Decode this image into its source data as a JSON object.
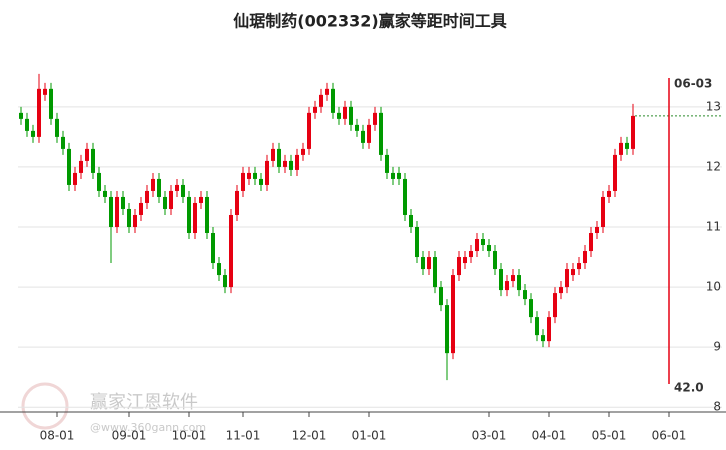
{
  "chart_data": {
    "type": "candlestick",
    "title": "仙琚制药(002332)赢家等距时间工具",
    "categories": [
      null,
      null,
      null,
      null,
      null,
      null,
      "08-01",
      null,
      null,
      null,
      null,
      null,
      null,
      null,
      null,
      null,
      null,
      null,
      "09-01",
      null,
      null,
      null,
      null,
      null,
      null,
      null,
      null,
      null,
      "10-01",
      null,
      null,
      null,
      null,
      null,
      null,
      null,
      null,
      "11-01",
      null,
      null,
      null,
      null,
      null,
      null,
      null,
      null,
      null,
      null,
      "12-01",
      null,
      null,
      null,
      null,
      null,
      null,
      null,
      null,
      null,
      "01-01",
      null,
      null,
      null,
      null,
      null,
      null,
      null,
      null,
      null,
      null,
      null,
      null,
      null,
      null,
      null,
      null,
      null,
      null,
      null,
      "03-01",
      null,
      null,
      null,
      null,
      null,
      null,
      null,
      null,
      null,
      "04-01",
      null,
      null,
      null,
      null,
      null,
      null,
      null,
      null,
      null,
      "05-01",
      null,
      null,
      null,
      null,
      null,
      null,
      null,
      null,
      null,
      "06-01",
      null,
      null,
      null,
      null,
      null,
      null,
      null,
      null
    ],
    "open": [
      12.9,
      12.8,
      12.6,
      12.5,
      13.2,
      13.3,
      12.8,
      12.5,
      12.3,
      11.7,
      11.9,
      12.1,
      12.3,
      11.9,
      11.6,
      11.5,
      11.0,
      11.5,
      11.3,
      11.0,
      11.2,
      11.4,
      11.6,
      11.8,
      11.5,
      11.3,
      11.6,
      11.7,
      11.5,
      10.9,
      11.4,
      11.5,
      10.9,
      10.4,
      10.2,
      10.0,
      11.2,
      11.6,
      11.8,
      11.9,
      11.8,
      11.7,
      12.1,
      12.3,
      12.0,
      12.1,
      11.95,
      12.2,
      12.3,
      12.9,
      13.0,
      13.2,
      13.3,
      12.9,
      12.8,
      13.0,
      12.7,
      12.6,
      12.4,
      12.7,
      12.9,
      12.2,
      11.9,
      11.9,
      11.8,
      11.2,
      11.0,
      10.5,
      10.3,
      10.5,
      10.0,
      9.7,
      8.9,
      10.2,
      10.4,
      10.5,
      10.6,
      10.8,
      10.7,
      10.6,
      10.3,
      9.95,
      10.1,
      10.2,
      9.95,
      9.8,
      9.5,
      9.2,
      9.1,
      9.5,
      9.9,
      10.0,
      10.2,
      10.3,
      10.4,
      10.6,
      10.9,
      11.0,
      11.5,
      11.6,
      12.2,
      12.4,
      12.3,
      null,
      null,
      null,
      null,
      null,
      null,
      null,
      null,
      null,
      null,
      null,
      null,
      null,
      null
    ],
    "high": [
      13.0,
      12.9,
      12.7,
      13.55,
      13.4,
      13.4,
      12.9,
      12.6,
      12.4,
      12.0,
      12.2,
      12.4,
      12.4,
      12.0,
      11.7,
      11.6,
      11.6,
      11.6,
      11.4,
      11.3,
      11.5,
      11.7,
      11.9,
      11.9,
      11.6,
      11.7,
      11.8,
      11.8,
      11.6,
      11.5,
      11.6,
      11.6,
      11.0,
      10.5,
      10.3,
      11.3,
      11.7,
      12.0,
      12.0,
      12.0,
      11.9,
      12.2,
      12.4,
      12.4,
      12.2,
      12.2,
      12.3,
      12.4,
      13.0,
      13.1,
      13.3,
      13.4,
      13.4,
      13.0,
      13.1,
      13.1,
      12.8,
      12.7,
      12.8,
      13.0,
      13.0,
      12.3,
      12.0,
      12.0,
      11.9,
      11.3,
      11.1,
      10.6,
      10.6,
      10.6,
      10.1,
      9.8,
      10.3,
      10.6,
      10.6,
      10.7,
      10.9,
      10.9,
      10.8,
      10.7,
      10.4,
      10.2,
      10.3,
      10.3,
      10.05,
      9.9,
      9.6,
      9.3,
      9.6,
      10.0,
      10.1,
      10.4,
      10.4,
      10.5,
      10.7,
      11.0,
      11.1,
      11.6,
      11.7,
      12.3,
      12.5,
      12.5,
      13.05,
      null,
      null,
      null,
      null,
      null,
      null,
      null,
      null,
      null,
      null,
      null,
      null,
      null,
      null
    ],
    "low": [
      12.7,
      12.5,
      12.4,
      12.4,
      13.1,
      12.7,
      12.4,
      12.2,
      11.6,
      11.6,
      11.8,
      12.0,
      11.8,
      11.5,
      11.4,
      10.4,
      10.9,
      11.2,
      10.9,
      10.9,
      11.1,
      11.3,
      11.5,
      11.4,
      11.2,
      11.2,
      11.5,
      11.4,
      10.8,
      10.8,
      11.3,
      10.8,
      10.3,
      10.1,
      9.9,
      9.9,
      11.1,
      11.5,
      11.7,
      11.7,
      11.6,
      11.6,
      12.0,
      11.9,
      11.9,
      11.85,
      11.85,
      12.1,
      12.2,
      12.8,
      12.9,
      13.1,
      12.8,
      12.7,
      12.7,
      12.6,
      12.5,
      12.3,
      12.3,
      12.6,
      12.1,
      11.8,
      11.7,
      11.7,
      11.1,
      10.9,
      10.4,
      10.2,
      10.2,
      9.9,
      9.6,
      8.45,
      8.8,
      10.1,
      10.3,
      10.4,
      10.5,
      10.6,
      10.5,
      10.2,
      9.85,
      9.85,
      10.0,
      9.85,
      9.7,
      9.4,
      9.1,
      9.0,
      9.0,
      9.4,
      9.8,
      9.9,
      10.1,
      10.2,
      10.3,
      10.5,
      10.8,
      10.9,
      11.4,
      11.5,
      12.1,
      12.2,
      12.2,
      null,
      null,
      null,
      null,
      null,
      null,
      null,
      null,
      null,
      null,
      null,
      null,
      null,
      null
    ],
    "close": [
      12.8,
      12.6,
      12.5,
      13.3,
      13.3,
      12.8,
      12.5,
      12.3,
      11.7,
      11.9,
      12.1,
      12.3,
      11.9,
      11.6,
      11.5,
      11.0,
      11.5,
      11.3,
      11.0,
      11.2,
      11.4,
      11.6,
      11.8,
      11.5,
      11.3,
      11.6,
      11.7,
      11.5,
      10.9,
      11.4,
      11.5,
      10.9,
      10.4,
      10.2,
      10.0,
      11.2,
      11.6,
      11.9,
      11.9,
      11.8,
      11.7,
      12.1,
      12.3,
      12.0,
      12.1,
      11.95,
      12.2,
      12.3,
      12.9,
      13.0,
      13.2,
      13.3,
      12.9,
      12.8,
      13.0,
      12.7,
      12.6,
      12.4,
      12.7,
      12.9,
      12.2,
      11.9,
      11.8,
      11.8,
      11.2,
      11.0,
      10.5,
      10.3,
      10.5,
      10.0,
      9.7,
      8.9,
      10.2,
      10.5,
      10.5,
      10.6,
      10.8,
      10.7,
      10.6,
      10.3,
      9.95,
      10.1,
      10.2,
      9.95,
      9.8,
      9.5,
      9.2,
      9.1,
      9.5,
      9.9,
      10.0,
      10.3,
      10.3,
      10.4,
      10.6,
      10.9,
      11.0,
      11.5,
      11.6,
      12.2,
      12.4,
      12.3,
      12.85,
      null,
      null,
      null,
      null,
      null,
      null,
      null,
      null,
      null,
      null,
      null,
      null,
      null,
      null
    ],
    "up_color": "#e60012",
    "down_color": "#009900",
    "ylim": [
      7.92,
      14.03
    ],
    "yticks": [
      8,
      9,
      10,
      11,
      12,
      13
    ],
    "grid": true,
    "marker": {
      "date": "06-03",
      "text": "42.0",
      "color": "#e60012"
    },
    "watermark": {
      "name": "赢家江恩软件",
      "url": "@www.360gann.com"
    }
  }
}
